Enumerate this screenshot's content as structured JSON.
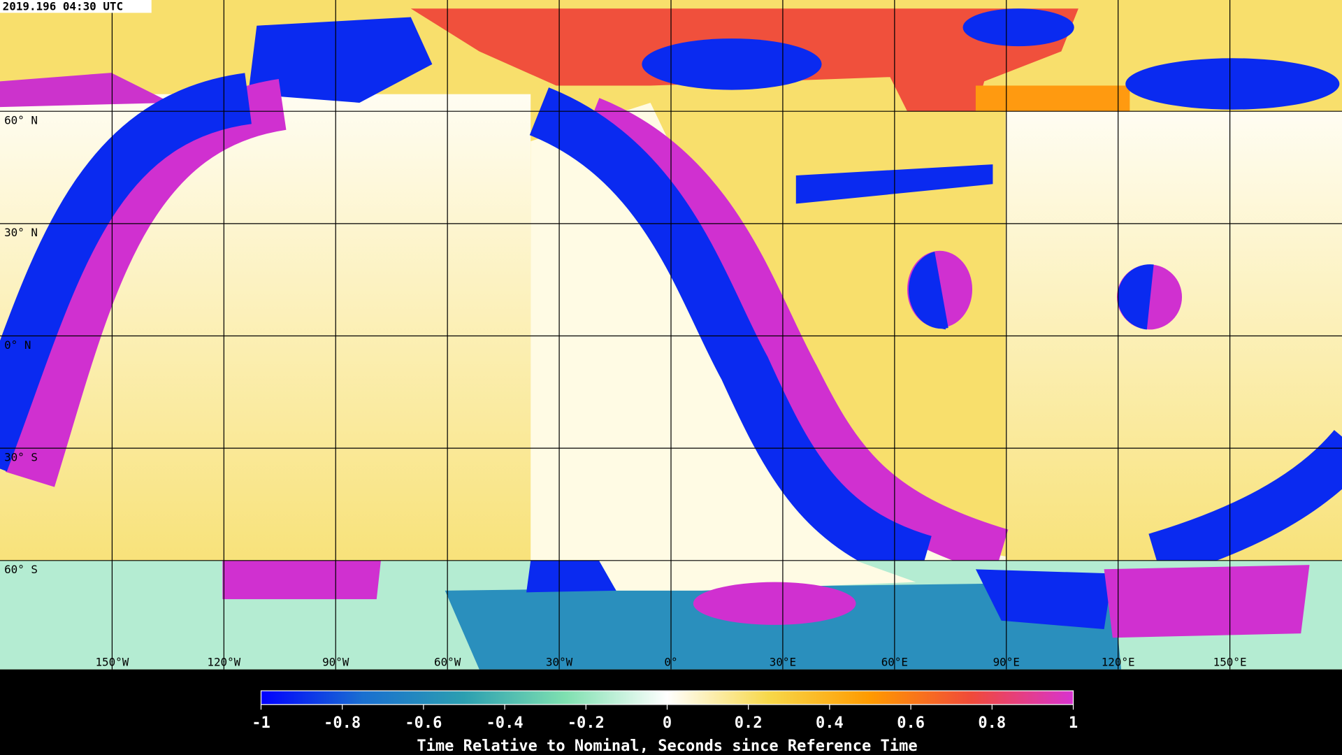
{
  "header": {
    "timestamp": "2019.196 04:30 UTC"
  },
  "map": {
    "lat_labels": [
      "60° N",
      "30° N",
      "0° N",
      "30° S",
      "60° S"
    ],
    "lon_labels": [
      "150°W",
      "120°W",
      "90°W",
      "60°W",
      "30°W",
      "0°",
      "30°E",
      "60°E",
      "90°E",
      "120°E",
      "150°E"
    ]
  },
  "colorbar": {
    "title": "Time Relative to Nominal, Seconds since Reference Time",
    "range": [
      -1,
      1
    ],
    "ticks": [
      -1,
      -0.8,
      -0.6,
      -0.4,
      -0.2,
      0,
      0.2,
      0.4,
      0.6,
      0.8,
      1
    ],
    "colors": [
      "#0000ff",
      "#1a6fd0",
      "#2c9fb0",
      "#7fe0b0",
      "#ffffff",
      "#f7d84a",
      "#ff9a00",
      "#f04a3a",
      "#d833d0"
    ]
  }
}
